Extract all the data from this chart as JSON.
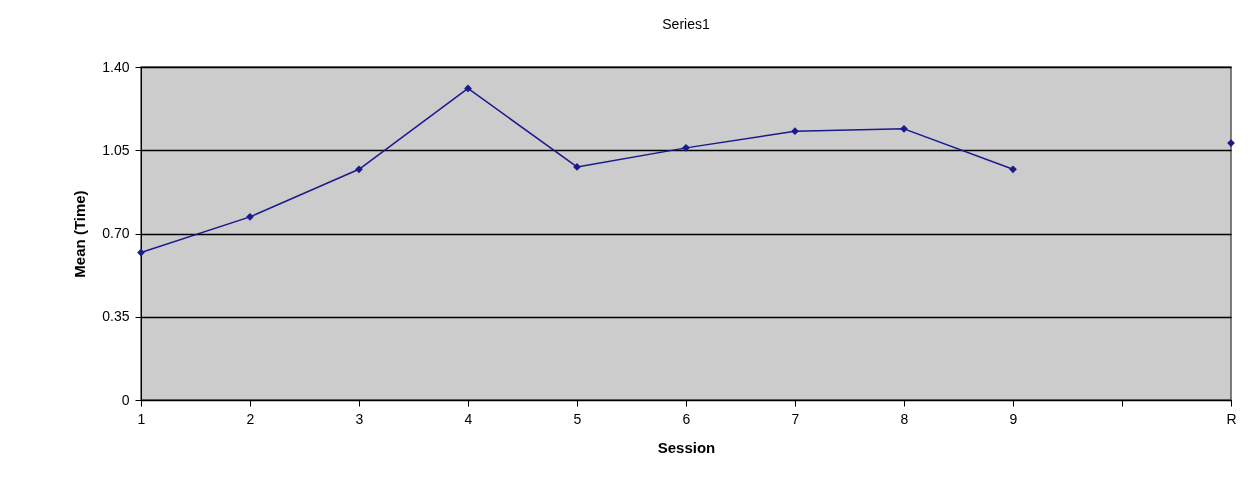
{
  "chart_data": {
    "type": "line",
    "title": "Series1",
    "xlabel": "Session",
    "ylabel": "Mean (Time)",
    "categories": [
      "1",
      "2",
      "3",
      "4",
      "5",
      "6",
      "7",
      "8",
      "9",
      null,
      "R"
    ],
    "series": [
      {
        "color": "#1a1a8c",
        "values": [
          0.62,
          0.77,
          0.97,
          1.31,
          0.98,
          1.06,
          1.13,
          1.14,
          0.97,
          null,
          1.08
        ]
      }
    ],
    "ylim": [
      0,
      1.4
    ],
    "yticks": [
      0,
      0.35,
      {
        "value": 0.7,
        "label": "0.70"
      },
      1.05,
      {
        "value": 1.4,
        "label": "1.40"
      }
    ],
    "grid": "y",
    "marker": "diamond",
    "line_style": "solid"
  }
}
